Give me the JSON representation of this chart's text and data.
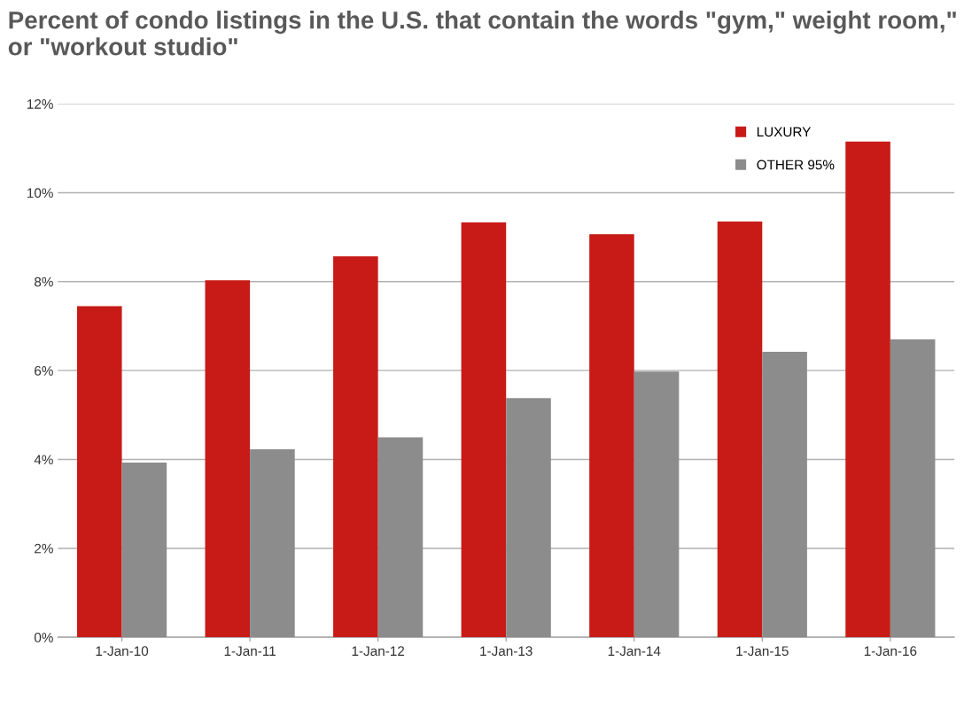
{
  "chart_data": {
    "type": "bar",
    "title": "Percent of condo listings in the U.S. that contain the words \"gym,\" weight room,\" or \"workout studio\"",
    "categories": [
      "1-Jan-10",
      "1-Jan-11",
      "1-Jan-12",
      "1-Jan-13",
      "1-Jan-14",
      "1-Jan-15",
      "1-Jan-16"
    ],
    "series": [
      {
        "name": "LUXURY",
        "color": "#c81b17",
        "values": [
          7.45,
          8.03,
          8.57,
          9.33,
          9.07,
          9.35,
          11.15
        ]
      },
      {
        "name": "OTHER 95%",
        "color": "#8c8c8c",
        "values": [
          3.93,
          4.23,
          4.5,
          5.38,
          5.98,
          6.42,
          6.7
        ]
      }
    ],
    "ylim": [
      0,
      12
    ],
    "yticks": [
      {
        "value": 0,
        "label": "0%"
      },
      {
        "value": 2,
        "label": "2%"
      },
      {
        "value": 4,
        "label": "4%"
      },
      {
        "value": 6,
        "label": "6%"
      },
      {
        "value": 8,
        "label": "8%"
      },
      {
        "value": 10,
        "label": "10%"
      },
      {
        "value": 12,
        "label": "12%"
      }
    ],
    "grid": "y",
    "legend": "top right"
  }
}
